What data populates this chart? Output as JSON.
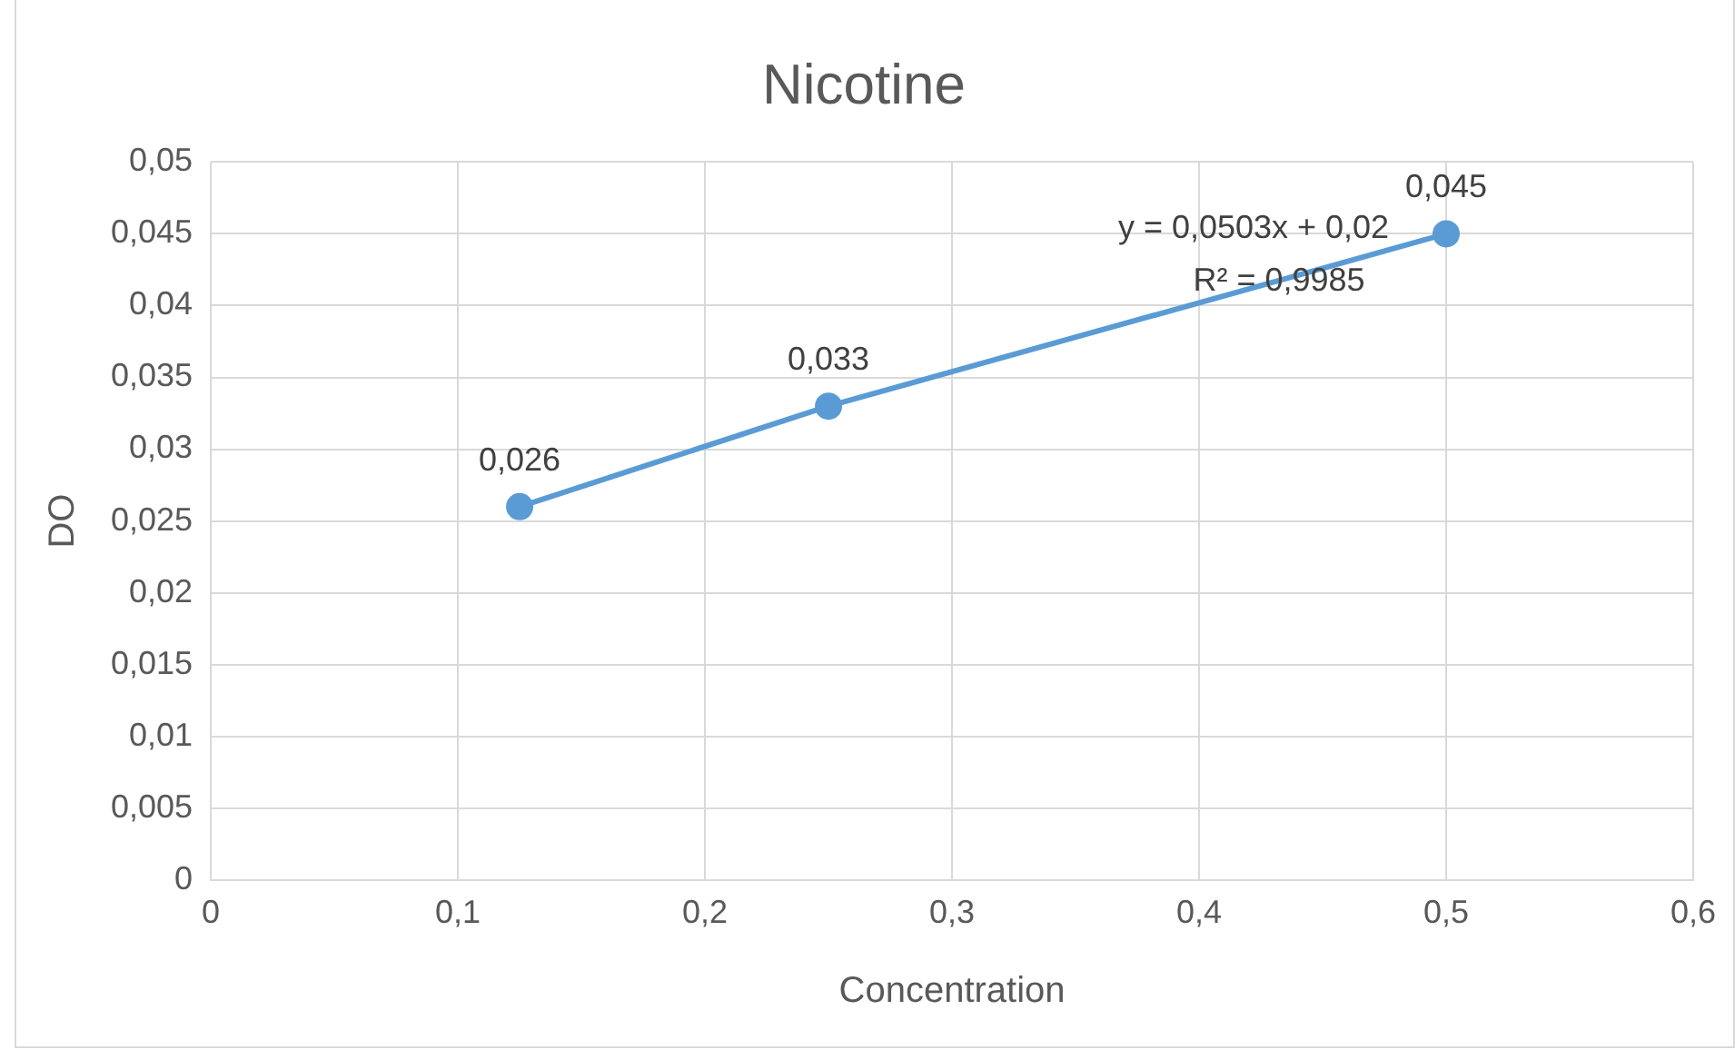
{
  "chart_data": {
    "type": "line",
    "title": "Nicotine",
    "xlabel": "Concentration",
    "ylabel": "DO",
    "x": [
      0.125,
      0.25,
      0.5
    ],
    "series": [
      {
        "color": "#5b9bd5",
        "values": [
          0.026,
          0.033,
          0.045
        ],
        "value_labels": [
          "0,026",
          "0,033",
          "0,045"
        ]
      }
    ],
    "xlim": [
      0,
      0.6
    ],
    "xticks": [
      {
        "value": 0,
        "label": "0"
      },
      {
        "value": 0.1,
        "label": "0,1"
      },
      {
        "value": 0.2,
        "label": "0,2"
      },
      {
        "value": 0.3,
        "label": "0,3"
      },
      {
        "value": 0.4,
        "label": "0,4"
      },
      {
        "value": 0.5,
        "label": "0,5"
      },
      {
        "value": 0.6,
        "label": "0,6"
      }
    ],
    "ylim": [
      0,
      0.05
    ],
    "yticks": [
      {
        "value": 0,
        "label": "0"
      },
      {
        "value": 0.005,
        "label": "0,005"
      },
      {
        "value": 0.01,
        "label": "0,01"
      },
      {
        "value": 0.015,
        "label": "0,015"
      },
      {
        "value": 0.02,
        "label": "0,02"
      },
      {
        "value": 0.025,
        "label": "0,025"
      },
      {
        "value": 0.03,
        "label": "0,03"
      },
      {
        "value": 0.035,
        "label": "0,035"
      },
      {
        "value": 0.04,
        "label": "0,04"
      },
      {
        "value": 0.045,
        "label": "0,045"
      },
      {
        "value": 0.05,
        "label": "0,05"
      }
    ],
    "annotations": [
      "y = 0,0503x + 0,02",
      "R² = 0,9985"
    ],
    "grid": true,
    "marker": "circle",
    "line_style": "solid"
  }
}
